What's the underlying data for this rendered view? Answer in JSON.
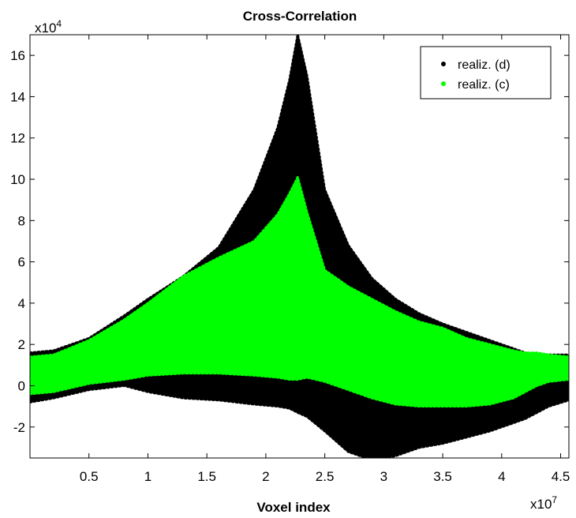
{
  "chart_data": {
    "type": "line",
    "title": "Cross-Correlation",
    "xlabel": "Voxel index",
    "ylabel": "",
    "x_multiplier_label": "x10",
    "x_multiplier_exponent": "7",
    "y_multiplier_label": "x10",
    "y_multiplier_exponent": "4",
    "xlim": [
      0,
      4.57
    ],
    "ylim": [
      -3.5,
      17
    ],
    "x_ticks": [
      0.5,
      1,
      1.5,
      2,
      2.5,
      3,
      3.5,
      4,
      4.5
    ],
    "x_tick_labels": [
      "0.5",
      "1",
      "1.5",
      "2",
      "2.5",
      "3",
      "3.5",
      "4",
      "4.5"
    ],
    "y_ticks": [
      -2,
      0,
      2,
      4,
      6,
      8,
      10,
      12,
      14,
      16
    ],
    "y_tick_labels": [
      "-2",
      "0",
      "2",
      "4",
      "6",
      "8",
      "10",
      "12",
      "14",
      "16"
    ],
    "grid": false,
    "legend": {
      "position": "top-right"
    },
    "series": [
      {
        "name": "realiz. (d)",
        "color": "#000000",
        "envelope_x": [
          0,
          0.2,
          0.5,
          0.8,
          1.0,
          1.3,
          1.6,
          1.9,
          2.1,
          2.2,
          2.27,
          2.35,
          2.5,
          2.7,
          2.9,
          3.1,
          3.3,
          3.5,
          3.7,
          3.9,
          4.1,
          4.2,
          4.3,
          4.4,
          4.57
        ],
        "upper": [
          1.6,
          1.7,
          2.3,
          3.4,
          4.2,
          5.3,
          6.7,
          9.5,
          12.5,
          14.8,
          17.0,
          15.0,
          9.5,
          6.8,
          5.2,
          4.2,
          3.5,
          3.0,
          2.6,
          2.2,
          1.8,
          1.6,
          1.5,
          1.5,
          1.5
        ],
        "lower": [
          -0.8,
          -0.6,
          -0.2,
          0.0,
          -0.3,
          -0.6,
          -0.7,
          -0.9,
          -1.0,
          -1.1,
          -1.3,
          -1.5,
          -2.2,
          -3.2,
          -3.6,
          -3.4,
          -3.0,
          -2.8,
          -2.5,
          -2.2,
          -1.8,
          -1.6,
          -1.3,
          -1.0,
          -0.7
        ]
      },
      {
        "name": "realiz. (c)",
        "color": "#00ff00",
        "envelope_x": [
          0,
          0.2,
          0.5,
          0.8,
          1.0,
          1.3,
          1.6,
          1.9,
          2.1,
          2.2,
          2.27,
          2.35,
          2.5,
          2.7,
          2.9,
          3.1,
          3.3,
          3.5,
          3.7,
          3.9,
          4.1,
          4.2,
          4.3,
          4.4,
          4.57
        ],
        "upper": [
          1.4,
          1.5,
          2.2,
          3.2,
          4.0,
          5.3,
          6.2,
          7.0,
          8.3,
          9.3,
          10.1,
          8.4,
          5.6,
          4.8,
          4.2,
          3.6,
          3.1,
          2.8,
          2.3,
          2.0,
          1.7,
          1.6,
          1.6,
          1.5,
          1.4
        ],
        "lower": [
          -0.4,
          -0.3,
          0.1,
          0.3,
          0.5,
          0.6,
          0.6,
          0.5,
          0.4,
          0.3,
          0.3,
          0.4,
          0.2,
          -0.2,
          -0.6,
          -0.9,
          -1.0,
          -1.0,
          -1.0,
          -0.9,
          -0.6,
          -0.3,
          0.0,
          0.2,
          0.3
        ]
      }
    ]
  }
}
